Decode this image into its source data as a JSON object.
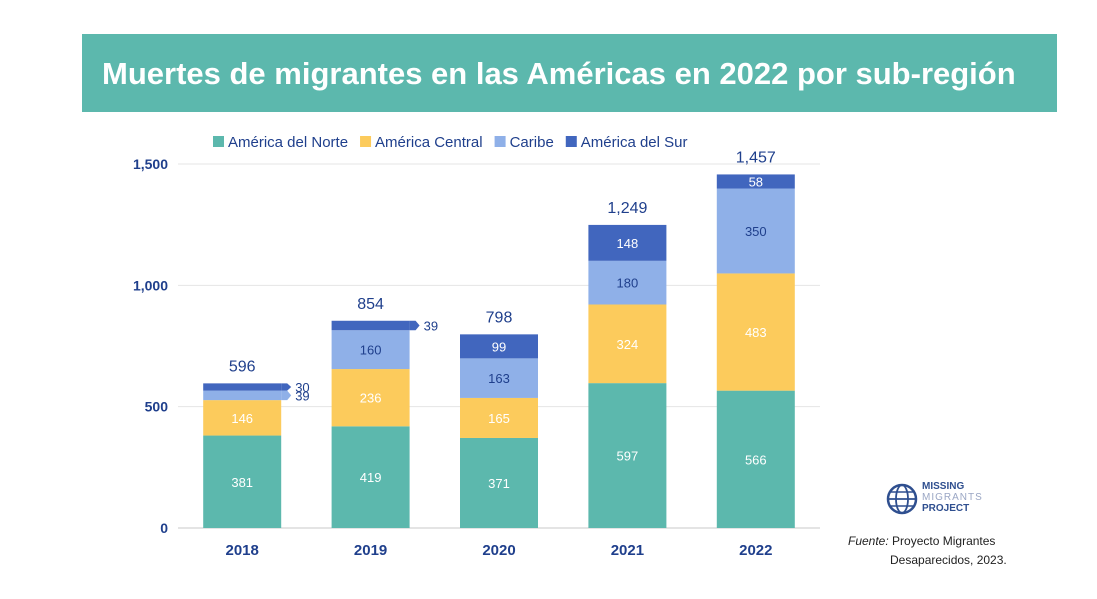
{
  "title": "Muertes de migrantes en las Américas en 2022 por sub-región",
  "chart_data": {
    "type": "bar",
    "stacked": true,
    "categories": [
      "2018",
      "2019",
      "2020",
      "2021",
      "2022"
    ],
    "series": [
      {
        "name": "América del Norte",
        "color": "#5cb8ad",
        "values": [
          381,
          419,
          371,
          597,
          566
        ]
      },
      {
        "name": "América Central",
        "color": "#fccb5c",
        "values": [
          146,
          236,
          165,
          324,
          483
        ]
      },
      {
        "name": "Caribe",
        "color": "#8fb0e8",
        "values": [
          39,
          160,
          163,
          180,
          350
        ]
      },
      {
        "name": "América del Sur",
        "color": "#4166be",
        "values": [
          30,
          39,
          99,
          148,
          58
        ]
      }
    ],
    "totals": [
      "596",
      "854",
      "798",
      "1,249",
      "1,457"
    ],
    "yticks": [
      0,
      500,
      1000,
      1500
    ],
    "ytick_labels": [
      "0",
      "500",
      "1,000",
      "1,500"
    ],
    "ylim": [
      0,
      1500
    ],
    "grid": true,
    "legend_position": "top"
  },
  "logo": {
    "line1": "MISSING",
    "line2": "MIGRANTS",
    "line3": "PROJECT"
  },
  "source": {
    "label": "Fuente:",
    "line1": "Proyecto Migrantes",
    "line2": "Desaparecidos, 2023."
  }
}
